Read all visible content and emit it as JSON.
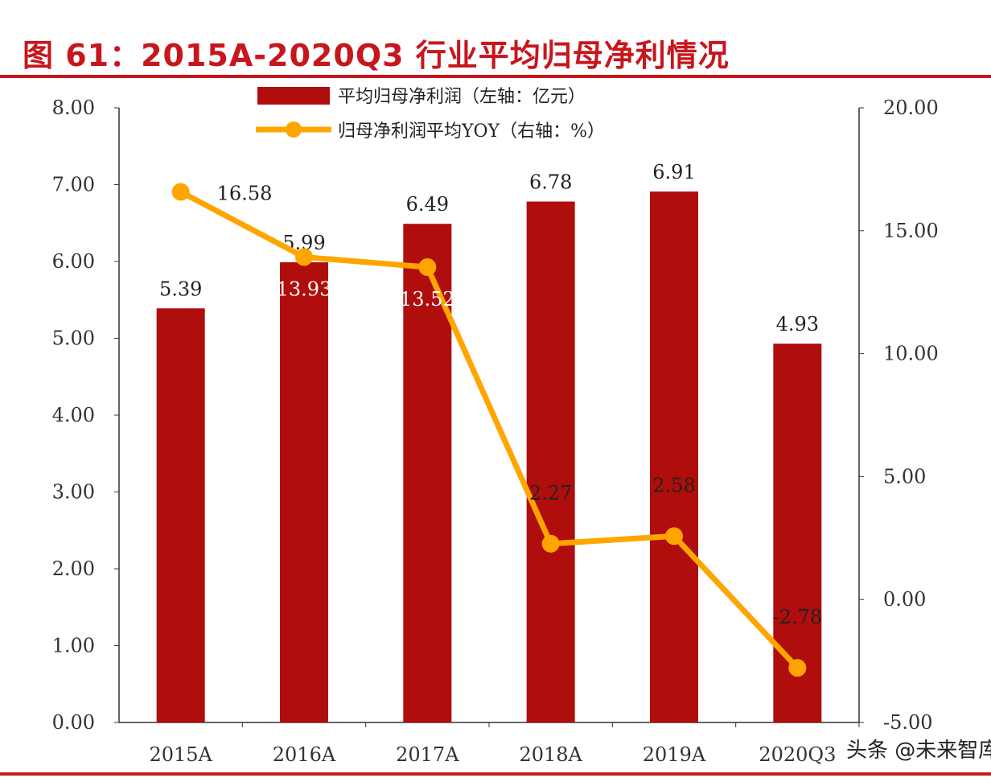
{
  "title": "图 61：2015A-2020Q3 行业平均归母净利情况",
  "watermark": "头条 @未来智库",
  "colors": {
    "bar": "#b00d0d",
    "line": "#ffa500",
    "title": "#c8161d"
  },
  "chart_data": {
    "type": "bar+line",
    "categories": [
      "2015A",
      "2016A",
      "2017A",
      "2018A",
      "2019A",
      "2020Q3"
    ],
    "series": [
      {
        "name": "平均归母净利润（左轴：亿元）",
        "type": "bar",
        "axis": "left",
        "values": [
          5.39,
          5.99,
          6.49,
          6.78,
          6.91,
          4.93
        ]
      },
      {
        "name": "归母净利润平均YOY（右轴：%）",
        "type": "line",
        "axis": "right",
        "values": [
          16.58,
          13.93,
          13.52,
          2.27,
          2.58,
          -2.78
        ]
      }
    ],
    "y_left": {
      "min": 0,
      "max": 8,
      "step": 1,
      "ticks": [
        "0.00",
        "1.00",
        "2.00",
        "3.00",
        "4.00",
        "5.00",
        "6.00",
        "7.00",
        "8.00"
      ]
    },
    "y_right": {
      "min": -5,
      "max": 20,
      "step": 5,
      "ticks": [
        "-5.00",
        "0.00",
        "5.00",
        "10.00",
        "15.00",
        "20.00"
      ]
    },
    "grid": false,
    "legend": "top-center"
  }
}
